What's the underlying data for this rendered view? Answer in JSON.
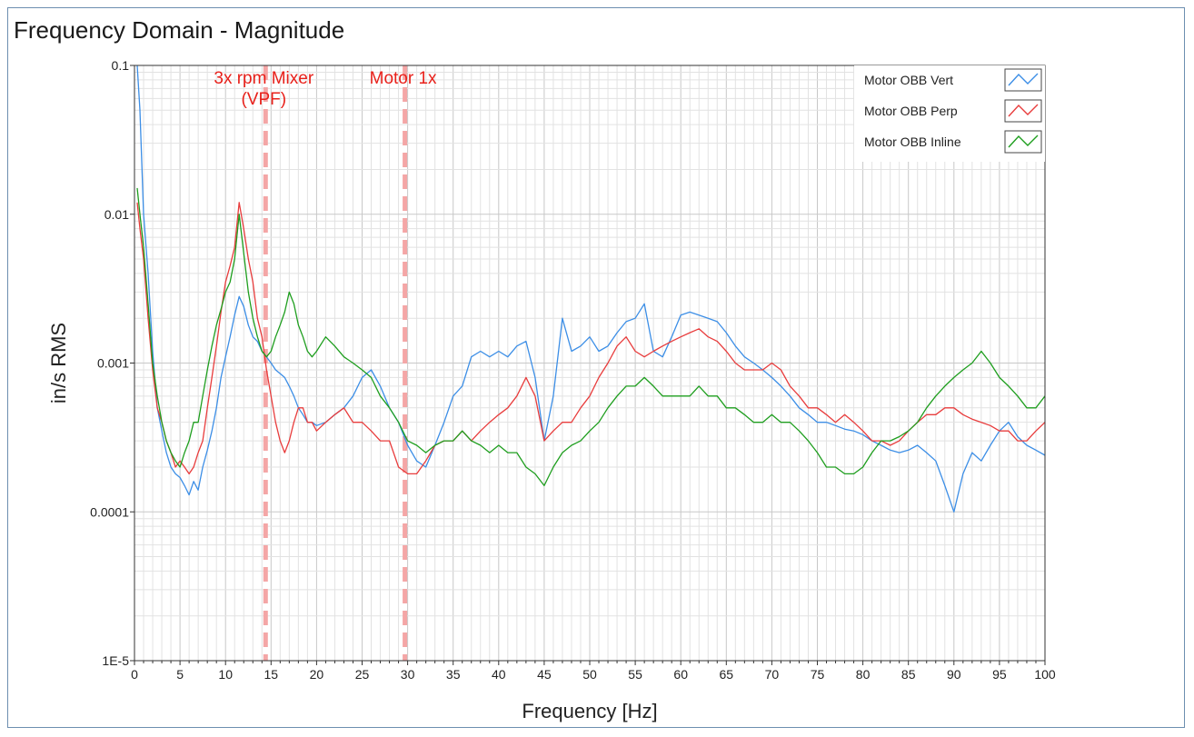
{
  "window": {
    "title": "Frequency Domain - Magnitude"
  },
  "chart_data": {
    "type": "line",
    "title": "Frequency Domain - Magnitude",
    "xlabel": "Frequency [Hz]",
    "ylabel": "in/s RMS",
    "xlim": [
      0,
      100
    ],
    "ylim": [
      1e-05,
      0.1
    ],
    "yscale": "log",
    "grid": true,
    "legend_position": "top-right",
    "x_ticks": [
      0,
      5,
      10,
      15,
      20,
      25,
      30,
      35,
      40,
      45,
      50,
      55,
      60,
      65,
      70,
      75,
      80,
      85,
      90,
      95,
      100
    ],
    "x_tick_labels": [
      "0",
      "5",
      "10",
      "15",
      "20",
      "25",
      "30",
      "35",
      "40",
      "45",
      "50",
      "55",
      "60",
      "65",
      "70",
      "75",
      "80",
      "85",
      "90",
      "95",
      "100"
    ],
    "y_ticks": [
      1e-05,
      0.0001,
      0.001,
      0.01,
      0.1
    ],
    "y_tick_labels": [
      "1E-5",
      "0.0001",
      "0.001",
      "0.01",
      "0.1"
    ],
    "series": [
      {
        "name": "Motor OBB Vert",
        "color": "#3c8ee6",
        "x": [
          0.3,
          0.6,
          1,
          1.5,
          2,
          2.5,
          3,
          3.5,
          4,
          4.5,
          5,
          5.5,
          6,
          6.5,
          7,
          7.5,
          8,
          8.5,
          9,
          9.5,
          10,
          10.5,
          11,
          11.5,
          12,
          12.5,
          13,
          13.5,
          14,
          14.5,
          15,
          15.5,
          16,
          16.5,
          17,
          17.5,
          18,
          18.5,
          19,
          19.5,
          20,
          21,
          22,
          23,
          24,
          25,
          26,
          27,
          28,
          29,
          30,
          31,
          32,
          33,
          34,
          35,
          36,
          37,
          38,
          39,
          40,
          41,
          42,
          43,
          44,
          45,
          46,
          47,
          48,
          49,
          50,
          51,
          52,
          53,
          54,
          55,
          56,
          57,
          58,
          59,
          60,
          61,
          62,
          63,
          64,
          65,
          66,
          67,
          68,
          69,
          70,
          71,
          72,
          73,
          74,
          75,
          76,
          77,
          78,
          79,
          80,
          81,
          82,
          83,
          84,
          85,
          86,
          87,
          88,
          89,
          90,
          91,
          92,
          93,
          94,
          95,
          96,
          97,
          98,
          99,
          100
        ],
        "values": [
          0.1,
          0.05,
          0.01,
          0.004,
          0.0012,
          0.0005,
          0.00035,
          0.00025,
          0.0002,
          0.00018,
          0.00017,
          0.00015,
          0.00013,
          0.00016,
          0.00014,
          0.0002,
          0.00026,
          0.00035,
          0.0005,
          0.0008,
          0.0011,
          0.0015,
          0.0021,
          0.0028,
          0.0024,
          0.0018,
          0.0015,
          0.0014,
          0.0012,
          0.0011,
          0.001,
          0.0009,
          0.00085,
          0.0008,
          0.0007,
          0.0006,
          0.0005,
          0.00045,
          0.0004,
          0.0004,
          0.00038,
          0.0004,
          0.00045,
          0.0005,
          0.0006,
          0.0008,
          0.0009,
          0.0007,
          0.0005,
          0.0004,
          0.00028,
          0.00022,
          0.0002,
          0.00028,
          0.0004,
          0.0006,
          0.0007,
          0.0011,
          0.0012,
          0.0011,
          0.0012,
          0.0011,
          0.0013,
          0.0014,
          0.0008,
          0.0003,
          0.0006,
          0.002,
          0.0012,
          0.0013,
          0.0015,
          0.0012,
          0.0013,
          0.0016,
          0.0019,
          0.002,
          0.0025,
          0.0012,
          0.0011,
          0.0015,
          0.0021,
          0.0022,
          0.0021,
          0.002,
          0.0019,
          0.0016,
          0.0013,
          0.0011,
          0.001,
          0.0009,
          0.0008,
          0.0007,
          0.0006,
          0.0005,
          0.00045,
          0.0004,
          0.0004,
          0.00038,
          0.00036,
          0.00035,
          0.00033,
          0.0003,
          0.00028,
          0.00026,
          0.00025,
          0.00026,
          0.00028,
          0.00025,
          0.00022,
          0.00015,
          0.0001,
          0.00018,
          0.00025,
          0.00022,
          0.00028,
          0.00035,
          0.0004,
          0.00032,
          0.00028,
          0.00026,
          0.00024
        ]
      },
      {
        "name": "Motor OBB Perp",
        "color": "#e83c3c",
        "x": [
          0.3,
          0.6,
          1,
          1.5,
          2,
          2.5,
          3,
          3.5,
          4,
          4.5,
          5,
          5.5,
          6,
          6.5,
          7,
          7.5,
          8,
          8.5,
          9,
          9.5,
          10,
          10.5,
          11,
          11.5,
          12,
          12.5,
          13,
          13.5,
          14,
          14.5,
          15,
          15.5,
          16,
          16.5,
          17,
          17.5,
          18,
          18.5,
          19,
          19.5,
          20,
          21,
          22,
          23,
          24,
          25,
          26,
          27,
          28,
          29,
          30,
          31,
          32,
          33,
          34,
          35,
          36,
          37,
          38,
          39,
          40,
          41,
          42,
          43,
          44,
          45,
          46,
          47,
          48,
          49,
          50,
          51,
          52,
          53,
          54,
          55,
          56,
          57,
          58,
          59,
          60,
          61,
          62,
          63,
          64,
          65,
          66,
          67,
          68,
          69,
          70,
          71,
          72,
          73,
          74,
          75,
          76,
          77,
          78,
          79,
          80,
          81,
          82,
          83,
          84,
          85,
          86,
          87,
          88,
          89,
          90,
          91,
          92,
          93,
          94,
          95,
          96,
          97,
          98,
          99,
          100
        ],
        "values": [
          0.012,
          0.008,
          0.005,
          0.002,
          0.0009,
          0.0005,
          0.0004,
          0.0003,
          0.00025,
          0.0002,
          0.00022,
          0.0002,
          0.00018,
          0.0002,
          0.00025,
          0.0003,
          0.0005,
          0.0008,
          0.0013,
          0.0022,
          0.0035,
          0.0045,
          0.006,
          0.012,
          0.008,
          0.005,
          0.0035,
          0.002,
          0.0015,
          0.0009,
          0.0006,
          0.0004,
          0.0003,
          0.00025,
          0.0003,
          0.0004,
          0.0005,
          0.0005,
          0.0004,
          0.0004,
          0.00035,
          0.0004,
          0.00045,
          0.0005,
          0.0004,
          0.0004,
          0.00035,
          0.0003,
          0.0003,
          0.0002,
          0.00018,
          0.00018,
          0.00022,
          0.00028,
          0.0003,
          0.0003,
          0.00035,
          0.0003,
          0.00035,
          0.0004,
          0.00045,
          0.0005,
          0.0006,
          0.0008,
          0.0006,
          0.0003,
          0.00035,
          0.0004,
          0.0004,
          0.0005,
          0.0006,
          0.0008,
          0.001,
          0.0013,
          0.0015,
          0.0012,
          0.0011,
          0.0012,
          0.0013,
          0.0014,
          0.0015,
          0.0016,
          0.0017,
          0.0015,
          0.0014,
          0.0012,
          0.001,
          0.0009,
          0.0009,
          0.0009,
          0.001,
          0.0009,
          0.0007,
          0.0006,
          0.0005,
          0.0005,
          0.00045,
          0.0004,
          0.00045,
          0.0004,
          0.00035,
          0.0003,
          0.0003,
          0.00028,
          0.0003,
          0.00035,
          0.0004,
          0.00045,
          0.00045,
          0.0005,
          0.0005,
          0.00045,
          0.00042,
          0.0004,
          0.00038,
          0.00035,
          0.00035,
          0.0003,
          0.0003,
          0.00035,
          0.0004
        ]
      },
      {
        "name": "Motor OBB Inline",
        "color": "#1e9e1e",
        "x": [
          0.3,
          0.6,
          1,
          1.5,
          2,
          2.5,
          3,
          3.5,
          4,
          4.5,
          5,
          5.5,
          6,
          6.5,
          7,
          7.5,
          8,
          8.5,
          9,
          9.5,
          10,
          10.5,
          11,
          11.5,
          12,
          12.5,
          13,
          13.5,
          14,
          14.5,
          15,
          15.5,
          16,
          16.5,
          17,
          17.5,
          18,
          18.5,
          19,
          19.5,
          20,
          21,
          22,
          23,
          24,
          25,
          26,
          27,
          28,
          29,
          30,
          31,
          32,
          33,
          34,
          35,
          36,
          37,
          38,
          39,
          40,
          41,
          42,
          43,
          44,
          45,
          46,
          47,
          48,
          49,
          50,
          51,
          52,
          53,
          54,
          55,
          56,
          57,
          58,
          59,
          60,
          61,
          62,
          63,
          64,
          65,
          66,
          67,
          68,
          69,
          70,
          71,
          72,
          73,
          74,
          75,
          76,
          77,
          78,
          79,
          80,
          81,
          82,
          83,
          84,
          85,
          86,
          87,
          88,
          89,
          90,
          91,
          92,
          93,
          94,
          95,
          96,
          97,
          98,
          99,
          100
        ],
        "values": [
          0.015,
          0.01,
          0.006,
          0.0025,
          0.001,
          0.0006,
          0.0004,
          0.0003,
          0.00025,
          0.00022,
          0.0002,
          0.00025,
          0.0003,
          0.0004,
          0.0004,
          0.0006,
          0.0009,
          0.0013,
          0.0018,
          0.0023,
          0.003,
          0.0035,
          0.005,
          0.01,
          0.0055,
          0.003,
          0.002,
          0.0015,
          0.0012,
          0.0011,
          0.0012,
          0.0015,
          0.0018,
          0.0022,
          0.003,
          0.0025,
          0.0018,
          0.0015,
          0.0012,
          0.0011,
          0.0012,
          0.0015,
          0.0013,
          0.0011,
          0.001,
          0.0009,
          0.0008,
          0.0006,
          0.0005,
          0.0004,
          0.0003,
          0.00028,
          0.00025,
          0.00028,
          0.0003,
          0.0003,
          0.00035,
          0.0003,
          0.00028,
          0.00025,
          0.00028,
          0.00025,
          0.00025,
          0.0002,
          0.00018,
          0.00015,
          0.0002,
          0.00025,
          0.00028,
          0.0003,
          0.00035,
          0.0004,
          0.0005,
          0.0006,
          0.0007,
          0.0007,
          0.0008,
          0.0007,
          0.0006,
          0.0006,
          0.0006,
          0.0006,
          0.0007,
          0.0006,
          0.0006,
          0.0005,
          0.0005,
          0.00045,
          0.0004,
          0.0004,
          0.00045,
          0.0004,
          0.0004,
          0.00035,
          0.0003,
          0.00025,
          0.0002,
          0.0002,
          0.00018,
          0.00018,
          0.0002,
          0.00025,
          0.0003,
          0.0003,
          0.00032,
          0.00035,
          0.0004,
          0.0005,
          0.0006,
          0.0007,
          0.0008,
          0.0009,
          0.001,
          0.0012,
          0.001,
          0.0008,
          0.0007,
          0.0006,
          0.0005,
          0.0005,
          0.0006
        ]
      }
    ],
    "annotations": [
      {
        "x": 14.4,
        "lines": [
          "3x rpm Mixer",
          "(VPF)"
        ],
        "color": "#e8201a"
      },
      {
        "x": 29.7,
        "lines": [
          "Motor 1x"
        ],
        "color": "#e8201a"
      }
    ]
  }
}
